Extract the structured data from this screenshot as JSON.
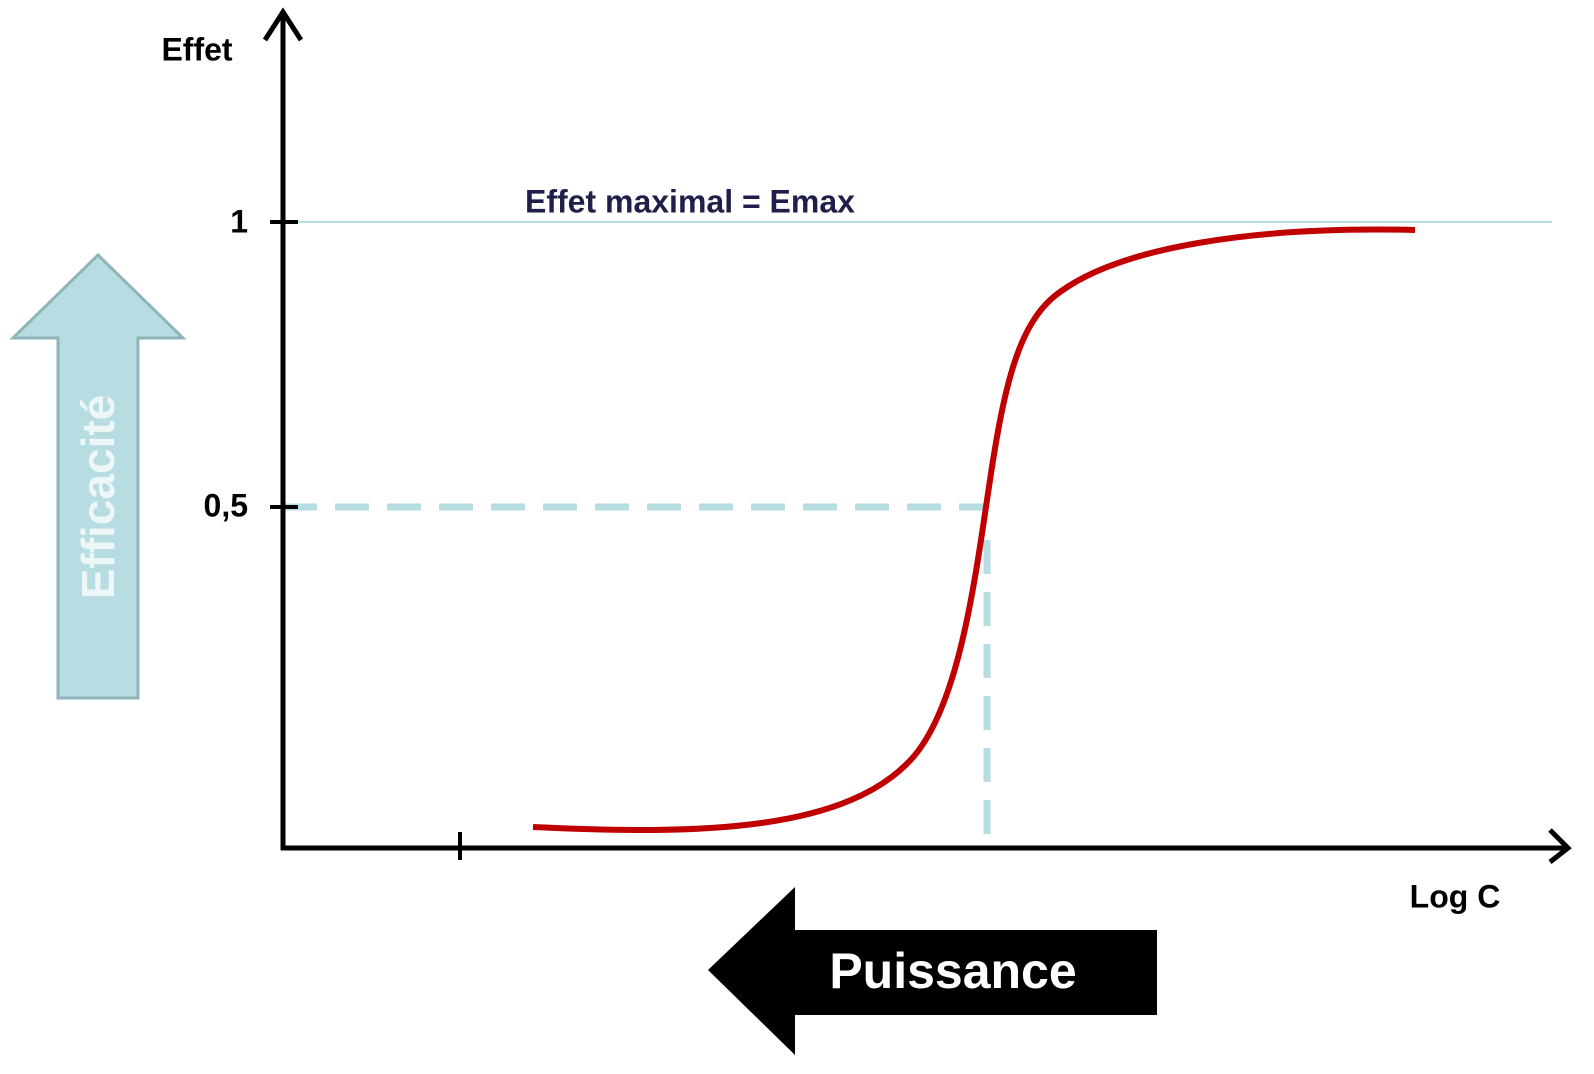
{
  "axes": {
    "y_label": "Effet",
    "x_label": "Log C",
    "ticks": [
      "1",
      "0,5"
    ]
  },
  "annotations": {
    "emax": "Effet maximal = Emax"
  },
  "arrows": {
    "efficacy": "Efficacité",
    "potency": "Puissance"
  }
}
